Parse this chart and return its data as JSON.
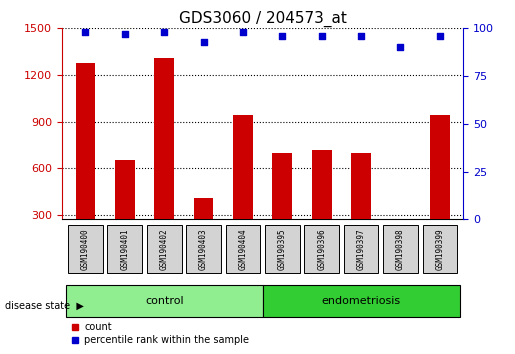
{
  "title": "GDS3060 / 204573_at",
  "samples": [
    "GSM190400",
    "GSM190401",
    "GSM190402",
    "GSM190403",
    "GSM190404",
    "GSM190395",
    "GSM190396",
    "GSM190397",
    "GSM190398",
    "GSM190399"
  ],
  "counts": [
    1280,
    650,
    1310,
    410,
    940,
    700,
    715,
    700,
    260,
    940
  ],
  "percentiles": [
    98,
    97,
    98,
    93,
    98,
    96,
    96,
    96,
    90,
    96
  ],
  "groups": [
    "control",
    "control",
    "control",
    "control",
    "control",
    "endometriosis",
    "endometriosis",
    "endometriosis",
    "endometriosis",
    "endometriosis"
  ],
  "ylim_left": [
    270,
    1500
  ],
  "ylim_right": [
    0,
    100
  ],
  "yticks_left": [
    300,
    600,
    900,
    1200,
    1500
  ],
  "yticks_right": [
    0,
    25,
    50,
    75,
    100
  ],
  "bar_color": "#cc0000",
  "scatter_color": "#0000cc",
  "grid_color": "#000000",
  "control_color": "#90ee90",
  "endo_color": "#32cd32",
  "label_bg_color": "#d3d3d3",
  "bar_width": 0.5,
  "ylabel_left_color": "#cc0000",
  "ylabel_right_color": "#0000cc"
}
